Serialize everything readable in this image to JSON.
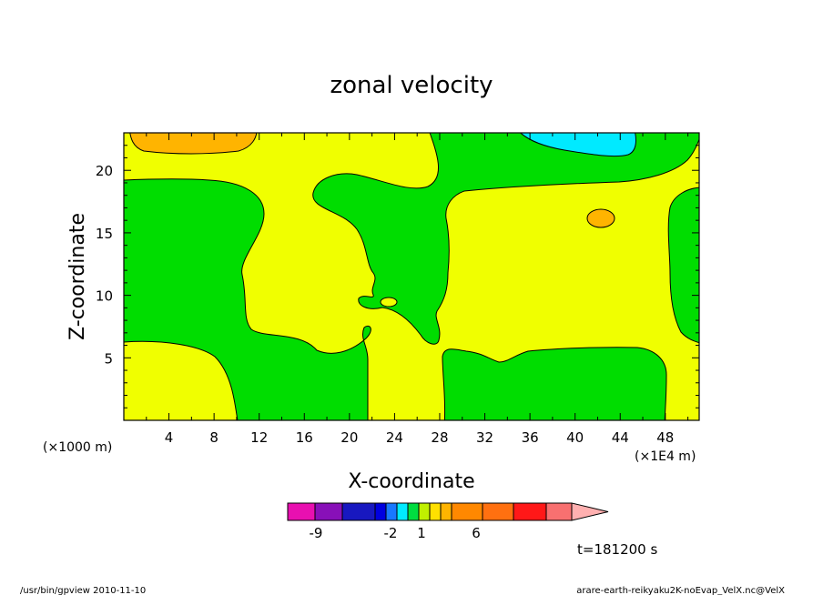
{
  "chart_data": {
    "type": "heatmap",
    "title": "zonal velocity",
    "xlabel": "X-coordinate",
    "ylabel": "Z-coordinate",
    "x_unit_left": "(×1000 m)",
    "x_unit_right": "(×1E4 m)",
    "xlim": [
      0,
      51
    ],
    "ylim": [
      0,
      23
    ],
    "xticks": [
      "4",
      "8",
      "12",
      "16",
      "20",
      "24",
      "28",
      "32",
      "36",
      "40",
      "44",
      "48"
    ],
    "yticks": [
      "5",
      "10",
      "15",
      "20"
    ],
    "legend_levels": [
      "-9",
      "-2",
      "1",
      "6"
    ],
    "legend_colors": [
      "#e810b0",
      "#8810b8",
      "#1818c0",
      "#0000e0",
      "#1878ff",
      "#00eaff",
      "#00dd40",
      "#c0f000",
      "#ffe000",
      "#ffb400",
      "#ff8800",
      "#ff7010",
      "#ff1818",
      "#f87070",
      "#ffb0b0"
    ],
    "time_label": "t=181200 s",
    "regions": [
      {
        "name": "background",
        "value_range": "0 to 1",
        "color": "#f0ff00"
      },
      {
        "name": "left-green-band",
        "value_range": "-1 to 0",
        "color": "#00dd00"
      },
      {
        "name": "center-green-band",
        "value_range": "-1 to 0",
        "color": "#00dd00"
      },
      {
        "name": "bottom-right-green",
        "value_range": "-1 to 0",
        "color": "#00dd00"
      },
      {
        "name": "top-right-green",
        "value_range": "-1 to 0",
        "color": "#00dd00"
      },
      {
        "name": "right-edge-green",
        "value_range": "-1 to 0",
        "color": "#00dd00"
      },
      {
        "name": "top-left-orange",
        "value_range": "1 to 2",
        "color": "#ffb400"
      },
      {
        "name": "small-orange-blob",
        "value_range": "1 to 2",
        "color": "#ffb400"
      },
      {
        "name": "top-right-cyan",
        "value_range": "-2 to -1",
        "color": "#00eaff"
      }
    ]
  },
  "footer": {
    "left": "/usr/bin/gpview   2010-11-10",
    "right": "arare-earth-reikyaku2K-noEvap_VelX.nc@VelX"
  }
}
